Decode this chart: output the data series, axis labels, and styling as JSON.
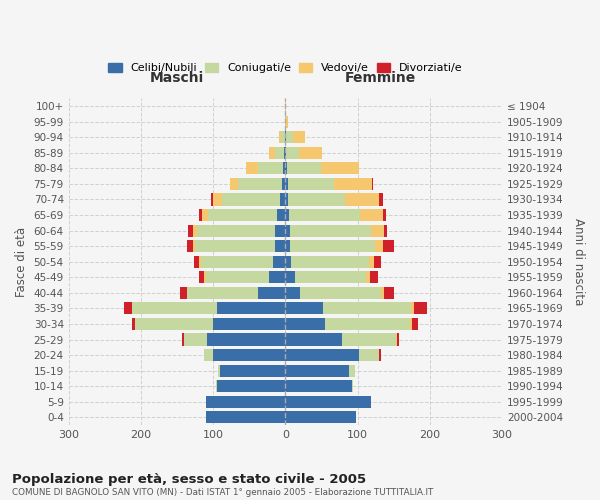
{
  "age_groups": [
    "100+",
    "95-99",
    "90-94",
    "85-89",
    "80-84",
    "75-79",
    "70-74",
    "65-69",
    "60-64",
    "55-59",
    "50-54",
    "45-49",
    "40-44",
    "35-39",
    "30-34",
    "25-29",
    "20-24",
    "15-19",
    "10-14",
    "5-9",
    "0-4"
  ],
  "birth_years": [
    "≤ 1904",
    "1905-1909",
    "1910-1914",
    "1915-1919",
    "1920-1924",
    "1925-1929",
    "1930-1934",
    "1935-1939",
    "1940-1944",
    "1945-1949",
    "1950-1954",
    "1955-1959",
    "1960-1964",
    "1965-1969",
    "1970-1974",
    "1975-1979",
    "1980-1984",
    "1985-1989",
    "1990-1994",
    "1995-1999",
    "2000-2004"
  ],
  "colors": {
    "celibe": "#3a6ea8",
    "coniugato": "#c5d8a0",
    "vedovo": "#f5c76e",
    "divorziato": "#d0212a"
  },
  "maschi": {
    "celibe": [
      0,
      0,
      1,
      2,
      3,
      5,
      8,
      12,
      15,
      15,
      17,
      22,
      38,
      95,
      100,
      108,
      100,
      90,
      95,
      110,
      110
    ],
    "coniugato": [
      0,
      1,
      5,
      12,
      35,
      60,
      80,
      95,
      108,
      110,
      100,
      88,
      98,
      118,
      108,
      32,
      12,
      3,
      1,
      0,
      0
    ],
    "vedovo": [
      0,
      0,
      3,
      8,
      16,
      12,
      12,
      8,
      5,
      3,
      2,
      2,
      0,
      0,
      0,
      0,
      0,
      0,
      0,
      0,
      0
    ],
    "divorziato": [
      0,
      0,
      0,
      0,
      0,
      0,
      3,
      5,
      7,
      8,
      7,
      8,
      10,
      10,
      5,
      3,
      0,
      0,
      0,
      0,
      0
    ]
  },
  "femmine": {
    "nubile": [
      0,
      0,
      1,
      1,
      2,
      3,
      4,
      5,
      6,
      6,
      8,
      14,
      20,
      52,
      55,
      78,
      102,
      88,
      92,
      118,
      98
    ],
    "coniugata": [
      0,
      1,
      10,
      18,
      48,
      65,
      78,
      98,
      112,
      118,
      108,
      98,
      112,
      122,
      118,
      75,
      28,
      8,
      2,
      0,
      0
    ],
    "vedova": [
      1,
      3,
      16,
      32,
      52,
      52,
      48,
      32,
      18,
      11,
      7,
      5,
      4,
      4,
      2,
      1,
      0,
      0,
      0,
      0,
      0
    ],
    "divorziata": [
      0,
      0,
      0,
      0,
      0,
      2,
      5,
      5,
      5,
      15,
      10,
      11,
      14,
      18,
      9,
      4,
      2,
      0,
      0,
      0,
      0
    ]
  },
  "title": "Popolazione per età, sesso e stato civile - 2005",
  "subtitle": "COMUNE DI BAGNOLO SAN VITO (MN) - Dati ISTAT 1° gennaio 2005 - Elaborazione TUTTITALIA.IT",
  "maschi_label": "Maschi",
  "femmine_label": "Femmine",
  "ylabel_left": "Fasce di età",
  "ylabel_right": "Anni di nascita",
  "xlim": 300,
  "legend_labels": [
    "Celibi/Nubili",
    "Coniugati/e",
    "Vedovi/e",
    "Divorziati/e"
  ],
  "bg_color": "#f5f5f5",
  "grid_color": "#cccccc"
}
